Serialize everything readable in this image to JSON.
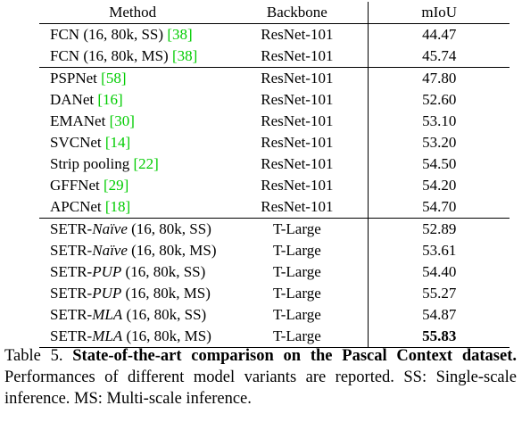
{
  "table": {
    "headers": {
      "method": "Method",
      "backbone": "Backbone",
      "miou": "mIoU"
    },
    "groups": [
      {
        "rows": [
          {
            "method_prefix": "FCN (16, 80k, SS) ",
            "cite_num": "[38]",
            "backbone": "ResNet-101",
            "miou": "44.47"
          },
          {
            "method_prefix": "FCN (16, 80k, MS) ",
            "cite_num": "[38]",
            "backbone": "ResNet-101",
            "miou": "45.74"
          }
        ]
      },
      {
        "rows": [
          {
            "method_prefix": "PSPNet ",
            "cite_num": "[58]",
            "backbone": "ResNet-101",
            "miou": "47.80"
          },
          {
            "method_prefix": "DANet ",
            "cite_num": "[16]",
            "backbone": "ResNet-101",
            "miou": "52.60"
          },
          {
            "method_prefix": "EMANet ",
            "cite_num": "[30]",
            "backbone": "ResNet-101",
            "miou": "53.10"
          },
          {
            "method_prefix": "SVCNet ",
            "cite_num": "[14]",
            "backbone": "ResNet-101",
            "miou": "53.20"
          },
          {
            "method_prefix": "Strip pooling ",
            "cite_num": "[22]",
            "backbone": "ResNet-101",
            "miou": "54.50"
          },
          {
            "method_prefix": "GFFNet ",
            "cite_num": "[29]",
            "backbone": "ResNet-101",
            "miou": "54.20"
          },
          {
            "method_prefix": "APCNet ",
            "cite_num": "[18]",
            "backbone": "ResNet-101",
            "miou": "54.70"
          }
        ]
      },
      {
        "rows": [
          {
            "method_prefix": "SETR-",
            "method_italic": "Naïve",
            "method_suffix": " (16, 80k, SS)",
            "backbone": "T-Large",
            "miou": "52.89"
          },
          {
            "method_prefix": "SETR-",
            "method_italic": "Naïve",
            "method_suffix": " (16, 80k, MS)",
            "backbone": "T-Large",
            "miou": "53.61"
          },
          {
            "method_prefix": "SETR-",
            "method_italic": "PUP",
            "method_suffix": " (16, 80k, SS)",
            "backbone": "T-Large",
            "miou": "54.40"
          },
          {
            "method_prefix": "SETR-",
            "method_italic": "PUP",
            "method_suffix": " (16, 80k, MS)",
            "backbone": "T-Large",
            "miou": "55.27"
          },
          {
            "method_prefix": "SETR-",
            "method_italic": "MLA",
            "method_suffix": " (16, 80k, SS)",
            "backbone": "T-Large",
            "miou": "54.87"
          },
          {
            "method_prefix": "SETR-",
            "method_italic": "MLA",
            "method_suffix": " (16, 80k, MS)",
            "backbone": "T-Large",
            "miou": "55.83",
            "miou_bold": true
          }
        ]
      }
    ]
  },
  "caption": {
    "label": "Table 5.",
    "bold_text": "State-of-the-art comparison on the Pascal Context dataset.",
    "text": "Performances of different model variants are reported. SS: Single-scale inference. MS: Multi-scale inference."
  },
  "colors": {
    "citation": "#00cc00",
    "text": "#000000"
  }
}
